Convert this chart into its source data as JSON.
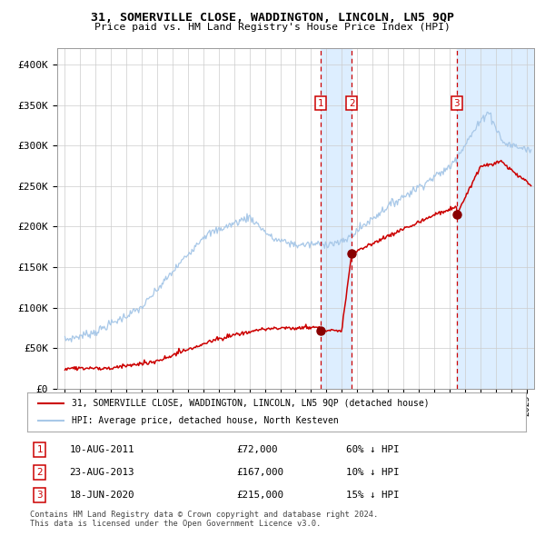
{
  "title": "31, SOMERVILLE CLOSE, WADDINGTON, LINCOLN, LN5 9QP",
  "subtitle": "Price paid vs. HM Land Registry's House Price Index (HPI)",
  "legend_line1": "31, SOMERVILLE CLOSE, WADDINGTON, LINCOLN, LN5 9QP (detached house)",
  "legend_line2": "HPI: Average price, detached house, North Kesteven",
  "footnote1": "Contains HM Land Registry data © Crown copyright and database right 2024.",
  "footnote2": "This data is licensed under the Open Government Licence v3.0.",
  "transactions": [
    {
      "num": 1,
      "date": "10-AUG-2011",
      "price": 72000,
      "pct": "60%",
      "dir": "↓"
    },
    {
      "num": 2,
      "date": "23-AUG-2013",
      "price": 167000,
      "pct": "10%",
      "dir": "↓"
    },
    {
      "num": 3,
      "date": "18-JUN-2020",
      "price": 215000,
      "pct": "15%",
      "dir": "↓"
    }
  ],
  "transaction_dates_decimal": [
    2011.608,
    2013.642,
    2020.464
  ],
  "transaction_prices": [
    72000,
    167000,
    215000
  ],
  "hpi_color": "#a8c8e8",
  "price_color": "#cc0000",
  "dot_color": "#880000",
  "vline_color": "#cc0000",
  "shade_color": "#ddeeff",
  "box_color": "#cc0000",
  "ylim": [
    0,
    420000
  ],
  "yticks": [
    0,
    50000,
    100000,
    150000,
    200000,
    250000,
    300000,
    350000,
    400000
  ],
  "xlim_start": 1994.5,
  "xlim_end": 2025.5,
  "background_color": "#ffffff",
  "grid_color": "#cccccc"
}
